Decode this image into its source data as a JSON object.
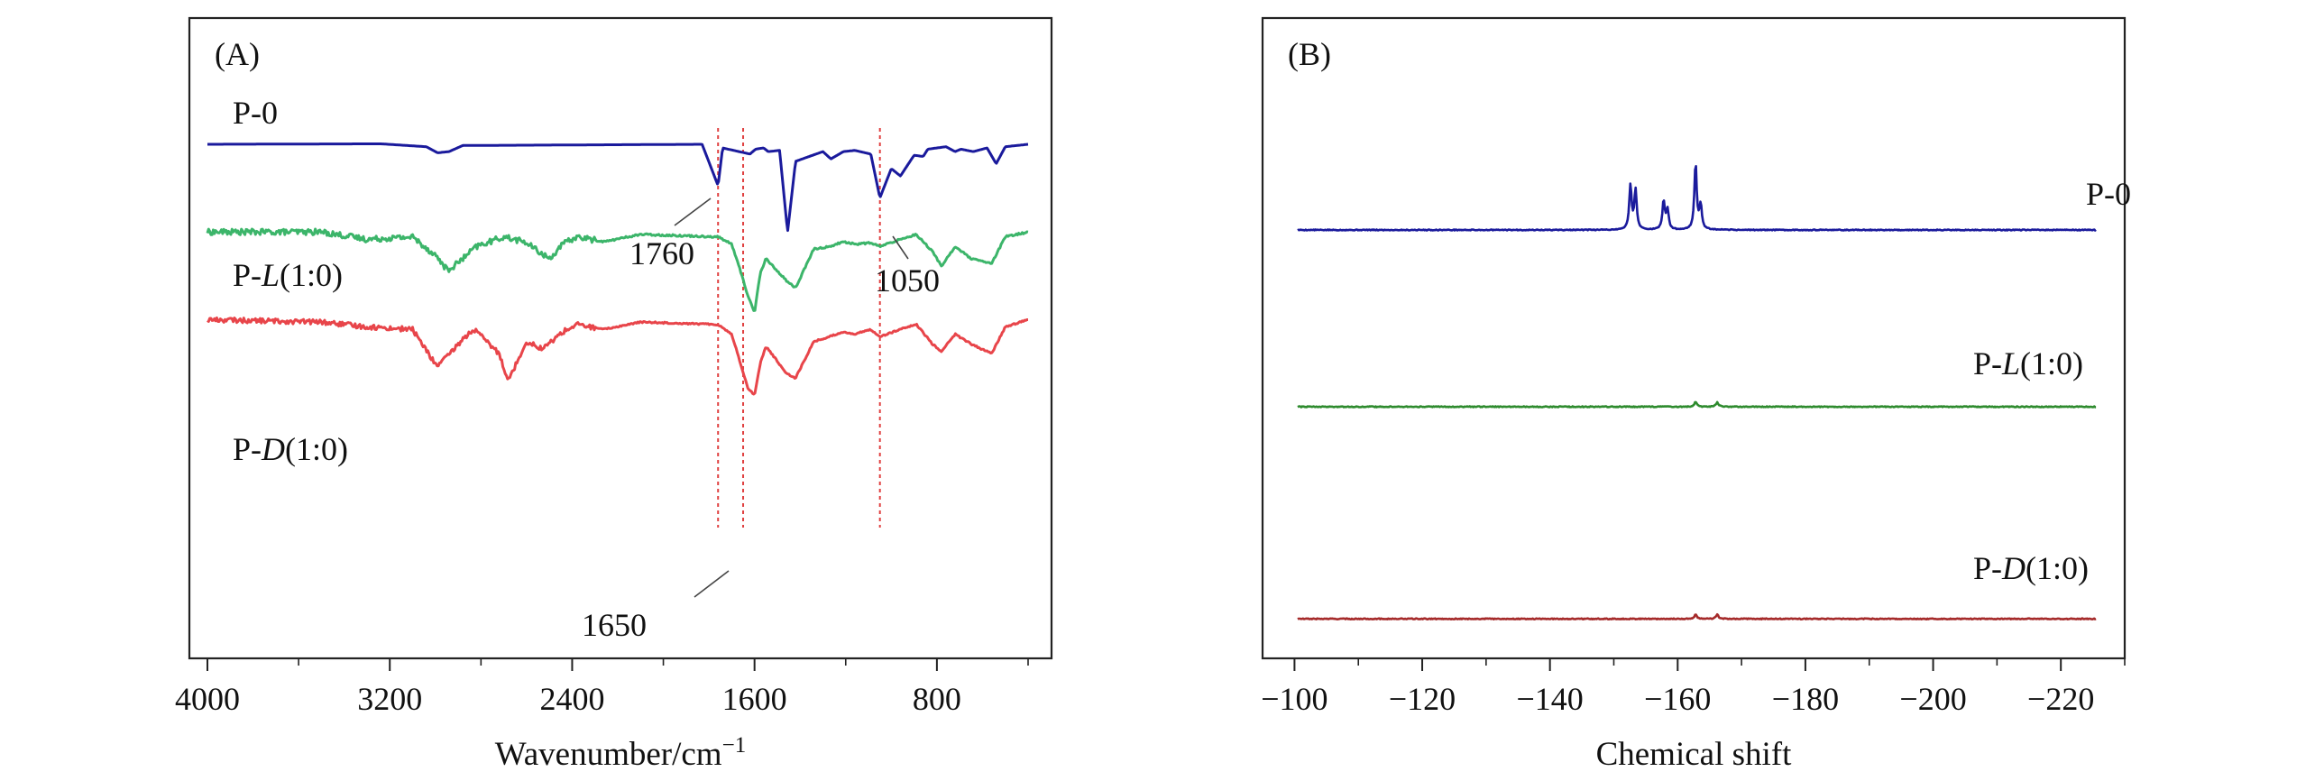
{
  "chart_data": [
    {
      "type": "line",
      "panel_label": "(A)",
      "xlabel_main": "Wavenumber/cm",
      "xlabel_sup": "−1",
      "xlim": [
        4000,
        400
      ],
      "x_ticks": [
        4000,
        3200,
        2400,
        1600,
        800
      ],
      "x_tick_labels": [
        "4000",
        "3200",
        "2400",
        "1600",
        "800"
      ],
      "y_ticks_shown": false,
      "grid": false,
      "series": [
        {
          "name": "P-0",
          "label_prefix": "P-",
          "label_italic": "",
          "label_suffix": "0",
          "color": "#1a1a9c",
          "baseline": 0,
          "noise": 0.0,
          "points": [
            [
              4000,
              0
            ],
            [
              3240,
              0.02
            ],
            [
              3040,
              -0.1
            ],
            [
              2990,
              -0.35
            ],
            [
              2940,
              -0.3
            ],
            [
              2880,
              -0.05
            ],
            [
              1830,
              0
            ],
            [
              1760,
              -1.7
            ],
            [
              1740,
              -0.15
            ],
            [
              1620,
              -0.4
            ],
            [
              1595,
              -0.2
            ],
            [
              1560,
              -0.15
            ],
            [
              1540,
              -0.3
            ],
            [
              1490,
              -0.25
            ],
            [
              1455,
              -3.6
            ],
            [
              1420,
              -0.7
            ],
            [
              1300,
              -0.3
            ],
            [
              1265,
              -0.6
            ],
            [
              1210,
              -0.3
            ],
            [
              1160,
              -0.25
            ],
            [
              1090,
              -0.4
            ],
            [
              1050,
              -2.2
            ],
            [
              1000,
              -1.0
            ],
            [
              960,
              -1.3
            ],
            [
              900,
              -0.45
            ],
            [
              860,
              -0.5
            ],
            [
              840,
              -0.2
            ],
            [
              760,
              -0.1
            ],
            [
              720,
              -0.3
            ],
            [
              695,
              -0.2
            ],
            [
              640,
              -0.3
            ],
            [
              580,
              -0.15
            ],
            [
              540,
              -0.8
            ],
            [
              500,
              -0.1
            ],
            [
              400,
              0
            ]
          ]
        },
        {
          "name": "P-L(1:0)",
          "label_prefix": "P-",
          "label_italic": "L",
          "label_suffix": "(1:0)",
          "color": "#3cb56a",
          "baseline": -3.6,
          "noise": 0.12,
          "points": [
            [
              4000,
              0
            ],
            [
              3500,
              0
            ],
            [
              3300,
              -0.3
            ],
            [
              3100,
              -0.2
            ],
            [
              2995,
              -1.0
            ],
            [
              2945,
              -1.6
            ],
            [
              2880,
              -1.1
            ],
            [
              2820,
              -0.6
            ],
            [
              2700,
              -0.2
            ],
            [
              2610,
              -0.4
            ],
            [
              2500,
              -1.1
            ],
            [
              2440,
              -0.5
            ],
            [
              2380,
              -0.2
            ],
            [
              2260,
              -0.4
            ],
            [
              2100,
              -0.1
            ],
            [
              1760,
              -0.2
            ],
            [
              1700,
              -0.5
            ],
            [
              1655,
              -1.8
            ],
            [
              1630,
              -2.6
            ],
            [
              1600,
              -3.3
            ],
            [
              1575,
              -1.7
            ],
            [
              1550,
              -1.1
            ],
            [
              1460,
              -2.0
            ],
            [
              1420,
              -2.3
            ],
            [
              1340,
              -0.7
            ],
            [
              1270,
              -0.6
            ],
            [
              1210,
              -0.4
            ],
            [
              1160,
              -0.5
            ],
            [
              1090,
              -0.45
            ],
            [
              1050,
              -0.6
            ],
            [
              960,
              -0.3
            ],
            [
              890,
              -0.1
            ],
            [
              820,
              -0.8
            ],
            [
              780,
              -1.4
            ],
            [
              720,
              -0.6
            ],
            [
              650,
              -1.1
            ],
            [
              560,
              -1.3
            ],
            [
              500,
              -0.2
            ],
            [
              400,
              0
            ]
          ]
        },
        {
          "name": "P-D(1:0)",
          "label_prefix": "P-",
          "label_italic": "D",
          "label_suffix": "(1:0)",
          "color": "#e8454a",
          "baseline": -7.2,
          "noise": 0.1,
          "points": [
            [
              4000,
              0
            ],
            [
              3500,
              -0.1
            ],
            [
              3300,
              -0.3
            ],
            [
              3100,
              -0.4
            ],
            [
              2995,
              -1.9
            ],
            [
              2945,
              -1.5
            ],
            [
              2880,
              -0.8
            ],
            [
              2830,
              -0.4
            ],
            [
              2720,
              -1.4
            ],
            [
              2680,
              -2.5
            ],
            [
              2600,
              -0.9
            ],
            [
              2530,
              -1.2
            ],
            [
              2440,
              -0.5
            ],
            [
              2380,
              -0.2
            ],
            [
              2260,
              -0.4
            ],
            [
              2100,
              -0.1
            ],
            [
              1760,
              -0.2
            ],
            [
              1700,
              -0.6
            ],
            [
              1655,
              -2.0
            ],
            [
              1630,
              -2.8
            ],
            [
              1600,
              -3.1
            ],
            [
              1575,
              -1.8
            ],
            [
              1550,
              -1.1
            ],
            [
              1460,
              -2.2
            ],
            [
              1420,
              -2.4
            ],
            [
              1340,
              -0.9
            ],
            [
              1270,
              -0.7
            ],
            [
              1210,
              -0.5
            ],
            [
              1160,
              -0.6
            ],
            [
              1090,
              -0.4
            ],
            [
              1050,
              -0.7
            ],
            [
              960,
              -0.4
            ],
            [
              890,
              -0.2
            ],
            [
              820,
              -1.0
            ],
            [
              780,
              -1.3
            ],
            [
              720,
              -0.6
            ],
            [
              650,
              -1.0
            ],
            [
              560,
              -1.4
            ],
            [
              500,
              -0.3
            ],
            [
              400,
              0
            ]
          ]
        }
      ],
      "marker_lines": [
        1760,
        1650,
        1050
      ],
      "annotations": [
        {
          "text": "1760",
          "x": 1760
        },
        {
          "text": "1050",
          "x": 1050
        },
        {
          "text": "1650",
          "x": 1650
        }
      ]
    },
    {
      "type": "line",
      "panel_label": "(B)",
      "xlabel": "Chemical shift",
      "xlim": [
        -95,
        -230
      ],
      "x_ticks": [
        -100,
        -120,
        -140,
        -160,
        -180,
        -200,
        -220
      ],
      "x_tick_labels": [
        "−100",
        "−120",
        "−140",
        "−160",
        "−180",
        "−200",
        "−220"
      ],
      "y_ticks_shown": false,
      "grid": false,
      "series": [
        {
          "name": "P-0",
          "label_prefix": "P-",
          "label_italic": "",
          "label_suffix": "0",
          "color": "#1a1a9c",
          "baseline": 0,
          "peaks": [
            [
              -152.6,
              1.0
            ],
            [
              -153.4,
              0.9
            ],
            [
              -157.8,
              0.65
            ],
            [
              -158.4,
              0.45
            ],
            [
              -162.8,
              1.5
            ],
            [
              -163.6,
              0.55
            ]
          ]
        },
        {
          "name": "P-L(1:0)",
          "label_prefix": "P-",
          "label_italic": "L",
          "label_suffix": "(1:0)",
          "color": "#2e8b2e",
          "baseline": -4.0,
          "peaks": [
            [
              -162.8,
              0.12
            ],
            [
              -166.2,
              0.1
            ]
          ]
        },
        {
          "name": "P-D(1:0)",
          "label_prefix": "P-",
          "label_italic": "D",
          "label_suffix": "(1:0)",
          "color": "#a52a2a",
          "baseline": -8.8,
          "peaks": [
            [
              -162.8,
              0.1
            ],
            [
              -166.2,
              0.1
            ]
          ]
        }
      ]
    }
  ]
}
